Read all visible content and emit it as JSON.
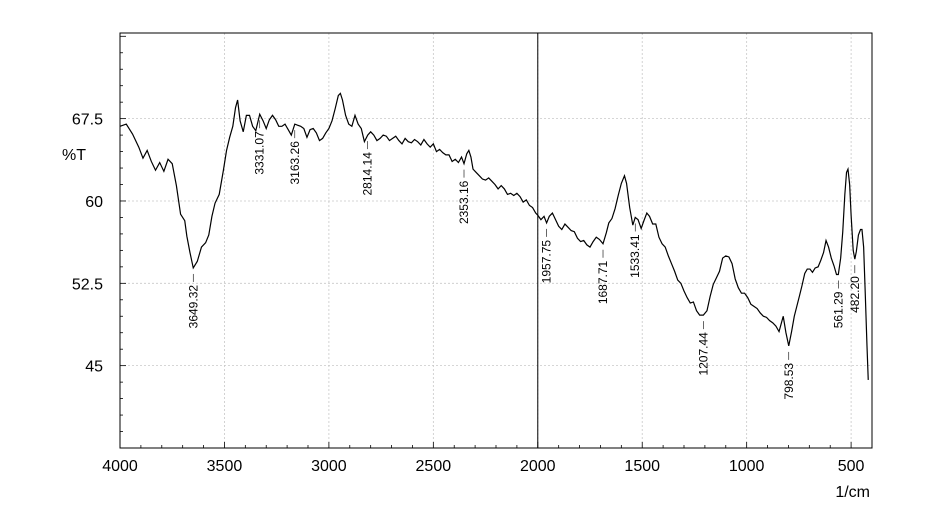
{
  "chart_data": {
    "type": "line",
    "title": "",
    "xlabel": "1/cm",
    "ylabel": "%T",
    "xlim": [
      4000,
      400
    ],
    "x_reversed": true,
    "ylim": [
      37.5,
      75.3
    ],
    "xticks": [
      4000,
      3500,
      3000,
      2500,
      2000,
      1500,
      1000,
      500
    ],
    "yticks": [
      45,
      52.5,
      60,
      67.5
    ],
    "grid": true,
    "cursor_line_x": 2000,
    "series": [
      {
        "name": "",
        "color": "#000000",
        "points": [
          [
            4000,
            66.8
          ],
          [
            3970,
            67.0
          ],
          [
            3940,
            66.1
          ],
          [
            3910,
            64.9
          ],
          [
            3890,
            63.9
          ],
          [
            3870,
            64.6
          ],
          [
            3850,
            63.6
          ],
          [
            3830,
            62.8
          ],
          [
            3810,
            63.5
          ],
          [
            3790,
            62.7
          ],
          [
            3770,
            63.8
          ],
          [
            3750,
            63.4
          ],
          [
            3730,
            61.4
          ],
          [
            3710,
            58.8
          ],
          [
            3690,
            58.2
          ],
          [
            3680,
            56.8
          ],
          [
            3665,
            55.3
          ],
          [
            3649.32,
            53.9
          ],
          [
            3630,
            54.5
          ],
          [
            3610,
            55.8
          ],
          [
            3590,
            56.2
          ],
          [
            3575,
            56.9
          ],
          [
            3560,
            58.6
          ],
          [
            3545,
            59.8
          ],
          [
            3525,
            60.6
          ],
          [
            3505,
            62.8
          ],
          [
            3490,
            64.6
          ],
          [
            3475,
            65.8
          ],
          [
            3460,
            66.8
          ],
          [
            3447,
            68.5
          ],
          [
            3437,
            69.2
          ],
          [
            3425,
            67.3
          ],
          [
            3410,
            66.3
          ],
          [
            3395,
            67.8
          ],
          [
            3380,
            67.8
          ],
          [
            3365,
            66.8
          ],
          [
            3350,
            66.4
          ],
          [
            3331.07,
            67.9
          ],
          [
            3315,
            67.3
          ],
          [
            3300,
            66.6
          ],
          [
            3285,
            67.4
          ],
          [
            3270,
            67.8
          ],
          [
            3255,
            67.4
          ],
          [
            3240,
            66.8
          ],
          [
            3225,
            66.8
          ],
          [
            3210,
            67.0
          ],
          [
            3195,
            66.5
          ],
          [
            3180,
            66.0
          ],
          [
            3163.26,
            67.0
          ],
          [
            3150,
            66.9
          ],
          [
            3135,
            66.8
          ],
          [
            3120,
            66.6
          ],
          [
            3105,
            65.8
          ],
          [
            3090,
            66.5
          ],
          [
            3075,
            66.6
          ],
          [
            3060,
            66.2
          ],
          [
            3045,
            65.5
          ],
          [
            3030,
            65.7
          ],
          [
            3015,
            66.2
          ],
          [
            3000,
            66.6
          ],
          [
            2985,
            67.3
          ],
          [
            2970,
            68.4
          ],
          [
            2955,
            69.6
          ],
          [
            2945,
            69.8
          ],
          [
            2935,
            69.2
          ],
          [
            2920,
            67.8
          ],
          [
            2905,
            67.0
          ],
          [
            2890,
            66.8
          ],
          [
            2875,
            67.8
          ],
          [
            2860,
            67.0
          ],
          [
            2845,
            66.6
          ],
          [
            2830,
            65.4
          ],
          [
            2814.14,
            66.0
          ],
          [
            2800,
            66.3
          ],
          [
            2785,
            66.0
          ],
          [
            2770,
            65.5
          ],
          [
            2755,
            65.7
          ],
          [
            2740,
            66.0
          ],
          [
            2725,
            65.9
          ],
          [
            2710,
            65.5
          ],
          [
            2695,
            65.7
          ],
          [
            2680,
            65.9
          ],
          [
            2665,
            65.5
          ],
          [
            2650,
            65.2
          ],
          [
            2635,
            65.7
          ],
          [
            2620,
            65.4
          ],
          [
            2605,
            65.3
          ],
          [
            2590,
            65.6
          ],
          [
            2575,
            65.4
          ],
          [
            2560,
            65.1
          ],
          [
            2545,
            65.6
          ],
          [
            2530,
            65.2
          ],
          [
            2515,
            64.9
          ],
          [
            2500,
            65.2
          ],
          [
            2485,
            64.5
          ],
          [
            2470,
            64.7
          ],
          [
            2455,
            64.4
          ],
          [
            2440,
            64.2
          ],
          [
            2425,
            64.2
          ],
          [
            2410,
            63.6
          ],
          [
            2395,
            63.8
          ],
          [
            2380,
            63.5
          ],
          [
            2365,
            64.0
          ],
          [
            2353.16,
            63.4
          ],
          [
            2340,
            64.3
          ],
          [
            2330,
            64.6
          ],
          [
            2320,
            64.0
          ],
          [
            2310,
            62.9
          ],
          [
            2295,
            62.6
          ],
          [
            2280,
            62.3
          ],
          [
            2265,
            62.0
          ],
          [
            2250,
            61.9
          ],
          [
            2235,
            62.1
          ],
          [
            2220,
            61.8
          ],
          [
            2205,
            61.5
          ],
          [
            2190,
            61.1
          ],
          [
            2175,
            61.4
          ],
          [
            2160,
            61.1
          ],
          [
            2145,
            60.6
          ],
          [
            2130,
            60.7
          ],
          [
            2115,
            60.5
          ],
          [
            2100,
            60.7
          ],
          [
            2085,
            60.4
          ],
          [
            2070,
            59.9
          ],
          [
            2055,
            60.1
          ],
          [
            2040,
            59.6
          ],
          [
            2025,
            59.4
          ],
          [
            2010,
            58.9
          ],
          [
            2000,
            58.7
          ],
          [
            1985,
            58.3
          ],
          [
            1970,
            58.6
          ],
          [
            1957.75,
            58.0
          ],
          [
            1945,
            58.6
          ],
          [
            1930,
            58.9
          ],
          [
            1915,
            58.3
          ],
          [
            1900,
            57.7
          ],
          [
            1885,
            57.4
          ],
          [
            1870,
            57.9
          ],
          [
            1855,
            57.6
          ],
          [
            1840,
            57.3
          ],
          [
            1825,
            57.2
          ],
          [
            1810,
            56.6
          ],
          [
            1795,
            56.3
          ],
          [
            1780,
            56.4
          ],
          [
            1765,
            56.0
          ],
          [
            1750,
            55.8
          ],
          [
            1735,
            56.3
          ],
          [
            1720,
            56.7
          ],
          [
            1705,
            56.5
          ],
          [
            1687.71,
            56.1
          ],
          [
            1672,
            57.1
          ],
          [
            1660,
            58.0
          ],
          [
            1645,
            58.4
          ],
          [
            1630,
            59.3
          ],
          [
            1615,
            60.5
          ],
          [
            1600,
            61.6
          ],
          [
            1585,
            62.3
          ],
          [
            1575,
            61.6
          ],
          [
            1560,
            59.4
          ],
          [
            1545,
            57.8
          ],
          [
            1533.41,
            58.5
          ],
          [
            1520,
            58.3
          ],
          [
            1505,
            57.5
          ],
          [
            1492,
            58.2
          ],
          [
            1478,
            58.9
          ],
          [
            1465,
            58.6
          ],
          [
            1450,
            57.9
          ],
          [
            1435,
            57.9
          ],
          [
            1420,
            56.7
          ],
          [
            1405,
            56.1
          ],
          [
            1390,
            55.8
          ],
          [
            1375,
            55.0
          ],
          [
            1360,
            54.3
          ],
          [
            1345,
            53.6
          ],
          [
            1330,
            52.8
          ],
          [
            1315,
            52.5
          ],
          [
            1300,
            51.8
          ],
          [
            1285,
            51.2
          ],
          [
            1270,
            50.7
          ],
          [
            1255,
            50.8
          ],
          [
            1240,
            50.0
          ],
          [
            1225,
            49.6
          ],
          [
            1207.44,
            49.6
          ],
          [
            1190,
            50.0
          ],
          [
            1175,
            51.3
          ],
          [
            1160,
            52.4
          ],
          [
            1145,
            53.0
          ],
          [
            1130,
            53.6
          ],
          [
            1115,
            54.8
          ],
          [
            1100,
            55.0
          ],
          [
            1085,
            54.9
          ],
          [
            1070,
            54.3
          ],
          [
            1055,
            52.9
          ],
          [
            1040,
            52.1
          ],
          [
            1025,
            51.6
          ],
          [
            1010,
            51.6
          ],
          [
            995,
            51.2
          ],
          [
            980,
            50.6
          ],
          [
            965,
            50.4
          ],
          [
            950,
            50.2
          ],
          [
            935,
            49.8
          ],
          [
            920,
            49.5
          ],
          [
            905,
            49.4
          ],
          [
            890,
            49.1
          ],
          [
            875,
            48.9
          ],
          [
            860,
            48.6
          ],
          [
            845,
            48.1
          ],
          [
            835,
            48.8
          ],
          [
            825,
            49.5
          ],
          [
            812,
            48.0
          ],
          [
            798.53,
            46.8
          ],
          [
            785,
            48.1
          ],
          [
            772,
            49.5
          ],
          [
            760,
            50.4
          ],
          [
            748,
            51.3
          ],
          [
            735,
            52.3
          ],
          [
            722,
            53.4
          ],
          [
            710,
            53.8
          ],
          [
            697,
            53.8
          ],
          [
            685,
            53.5
          ],
          [
            672,
            53.9
          ],
          [
            658,
            54.0
          ],
          [
            645,
            54.6
          ],
          [
            632,
            55.3
          ],
          [
            620,
            56.4
          ],
          [
            608,
            55.8
          ],
          [
            595,
            54.8
          ],
          [
            582,
            54.1
          ],
          [
            570,
            53.3
          ],
          [
            561.29,
            53.3
          ],
          [
            550,
            54.8
          ],
          [
            540,
            57.2
          ],
          [
            530,
            60.6
          ],
          [
            522,
            62.6
          ],
          [
            515,
            62.9
          ],
          [
            507,
            61.5
          ],
          [
            500,
            58.7
          ],
          [
            490,
            55.5
          ],
          [
            482.2,
            54.7
          ],
          [
            475,
            55.4
          ],
          [
            465,
            56.9
          ],
          [
            455,
            57.4
          ],
          [
            448,
            57.4
          ],
          [
            440,
            55.8
          ],
          [
            432,
            51.4
          ],
          [
            424,
            46.8
          ],
          [
            418,
            43.7
          ]
        ]
      }
    ],
    "peak_labels": [
      {
        "x": 3649.32,
        "text": "3649.32",
        "side": "below"
      },
      {
        "x": 3331.07,
        "text": "3331.07",
        "side": "below"
      },
      {
        "x": 3163.26,
        "text": "3163.26",
        "side": "below"
      },
      {
        "x": 2814.14,
        "text": "2814.14",
        "side": "below"
      },
      {
        "x": 2353.16,
        "text": "2353.16",
        "side": "below"
      },
      {
        "x": 1957.75,
        "text": "1957.75",
        "side": "below"
      },
      {
        "x": 1687.71,
        "text": "1687.71",
        "side": "below"
      },
      {
        "x": 1533.41,
        "text": "1533.41",
        "side": "below"
      },
      {
        "x": 1207.44,
        "text": "1207.44",
        "side": "below"
      },
      {
        "x": 798.53,
        "text": "798.53",
        "side": "below"
      },
      {
        "x": 561.29,
        "text": "561.29",
        "side": "below"
      },
      {
        "x": 482.2,
        "text": "482.20",
        "side": "below"
      }
    ]
  }
}
